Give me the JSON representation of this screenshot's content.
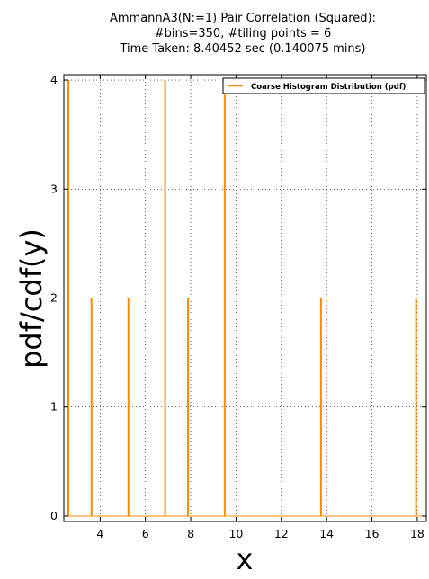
{
  "chart_data": {
    "type": "bar",
    "title_lines": [
      "AmmannA3(N:=1) Pair Correlation (Squared):",
      "#bins=350, #tiling points = 6",
      "Time Taken: 8.40452 sec (0.140075 mins)"
    ],
    "xlabel": "x",
    "ylabel": "pdf/cdf(y)",
    "xlim": [
      2.4,
      18.4
    ],
    "ylim": [
      -0.05,
      4.05
    ],
    "xticks": [
      4,
      6,
      8,
      10,
      12,
      14,
      16,
      18
    ],
    "yticks": [
      0,
      1,
      2,
      3,
      4
    ],
    "grid": true,
    "legend_position": "top-right",
    "series": [
      {
        "name": "Coarse Histogram Distribution (pdf)",
        "color": "#ff8c00",
        "x": [
          2.6,
          3.62,
          5.25,
          6.87,
          7.88,
          9.5,
          13.75,
          17.95
        ],
        "values": [
          4,
          2,
          2,
          4,
          2,
          4,
          2,
          2
        ]
      }
    ]
  }
}
